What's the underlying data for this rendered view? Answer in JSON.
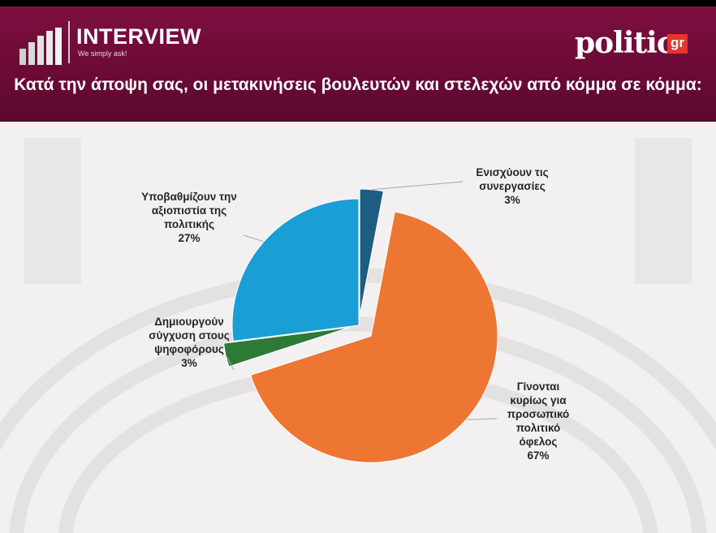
{
  "header": {
    "logo_title": "INTERVIEW",
    "logo_tagline": "We simply ask!",
    "brand_name": "politic",
    "brand_suffix": "gr",
    "question": "Κατά την άποψη σας, οι μετακινήσεις βουλευτών και στελεχών από κόμμα σε κόμμα:"
  },
  "colors": {
    "header_background": "#7a0e3d",
    "brand_badge": "#e3362c"
  },
  "chart_data": {
    "type": "pie",
    "title": "Κατά την άποψη σας, οι μετακινήσεις βουλευτών και στελεχών από κόμμα σε κόμμα:",
    "slices": [
      {
        "label": "Ενισχύουν τις συνεργασίες",
        "value": 3,
        "value_label": "3%",
        "color": "#1d5d82",
        "exploded": true
      },
      {
        "label": "Γίνονται κυρίως για προσωπικό πολιτικό όφελος",
        "value": 67,
        "value_label": "67%",
        "color": "#ed7632",
        "exploded": true
      },
      {
        "label": "Δημιουργούν σύγχυση στους ψηφοφόρους",
        "value": 3,
        "value_label": "3%",
        "color": "#2d7a37",
        "exploded": true
      },
      {
        "label": "Υποβαθμίζουν την αξιοπιστία της πολιτικής",
        "value": 27,
        "value_label": "27%",
        "color": "#1a9ed6",
        "exploded": false
      }
    ],
    "legend": "none",
    "data_labels": "outside with leader lines"
  }
}
